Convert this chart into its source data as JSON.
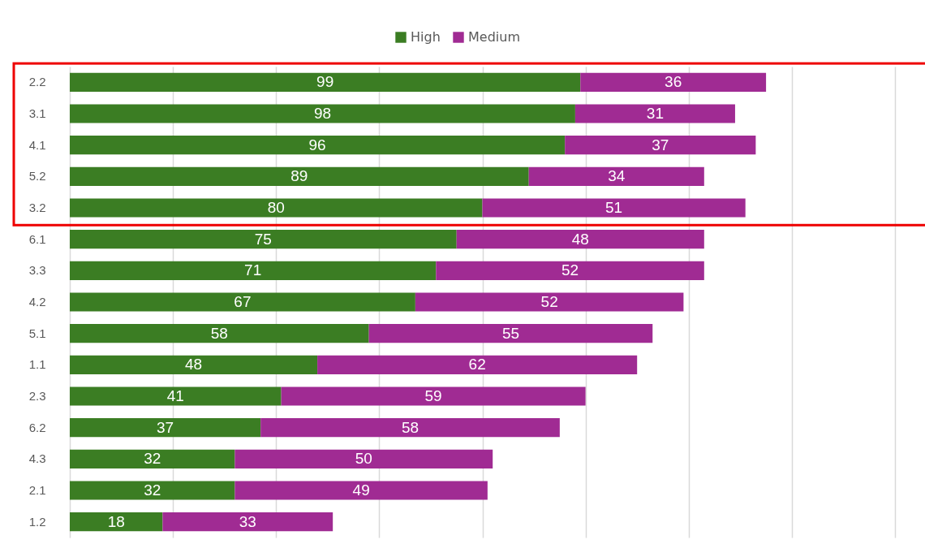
{
  "chart_data": {
    "type": "bar",
    "orientation": "horizontal",
    "stacked": true,
    "data_labels": true,
    "legend": "top",
    "grid": "x",
    "tick_labels": "y",
    "categories": [
      "2.2",
      "3.1",
      "4.1",
      "5.2",
      "3.2",
      "6.1",
      "3.3",
      "4.2",
      "5.1",
      "1.1",
      "2.3",
      "6.2",
      "4.3",
      "2.1",
      "1.2"
    ],
    "series": [
      {
        "name": "High",
        "color": "#3b7d23",
        "values": [
          99,
          98,
          96,
          89,
          80,
          75,
          71,
          67,
          58,
          48,
          41,
          37,
          32,
          32,
          18
        ]
      },
      {
        "name": "Medium",
        "color": "#a02b93",
        "values": [
          36,
          31,
          37,
          34,
          51,
          48,
          52,
          52,
          55,
          62,
          59,
          58,
          50,
          49,
          33
        ]
      }
    ],
    "xlim": [
      0,
      160
    ],
    "xticks": [
      {
        "value": 0,
        "label": null
      },
      {
        "value": 20,
        "label": null
      },
      {
        "value": 40,
        "label": null
      },
      {
        "value": 60,
        "label": null
      },
      {
        "value": 80,
        "label": null
      },
      {
        "value": 100,
        "label": null
      },
      {
        "value": 120,
        "label": null
      },
      {
        "value": 140,
        "label": null
      },
      {
        "value": 160,
        "label": null
      }
    ]
  }
}
